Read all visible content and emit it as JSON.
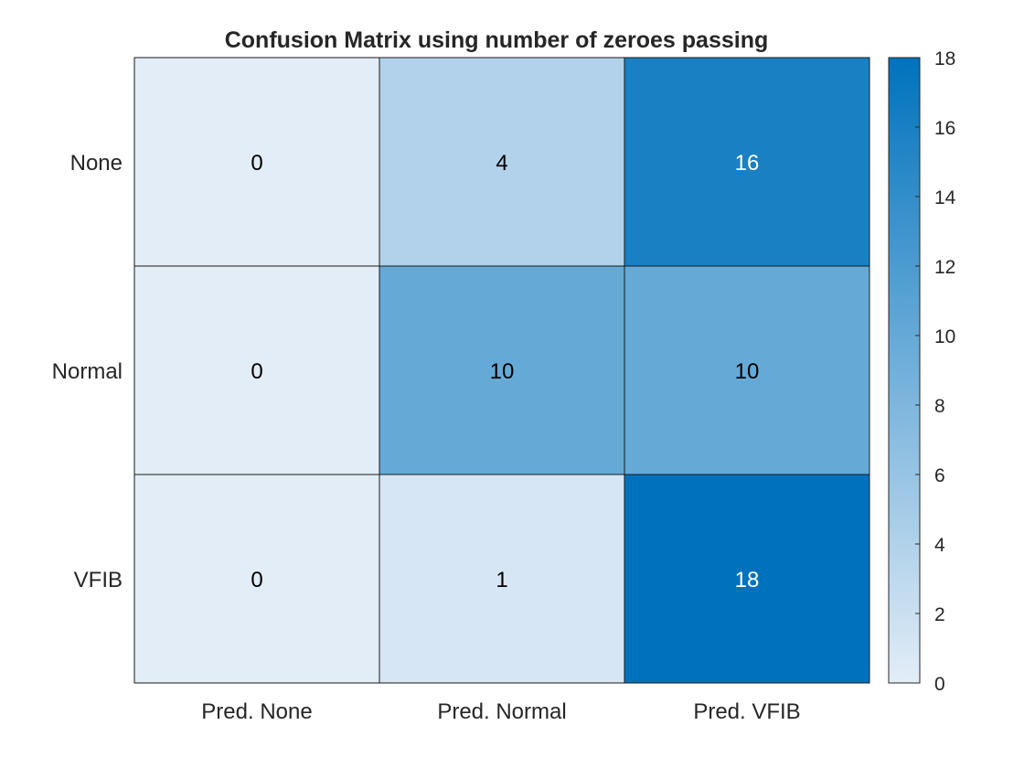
{
  "chart_data": {
    "type": "heatmap",
    "title": "Confusion Matrix using number of zeroes passing",
    "x_categories": [
      "Pred. None",
      "Pred. Normal",
      "Pred. VFIB"
    ],
    "y_categories": [
      "None",
      "Normal",
      "VFIB"
    ],
    "values": [
      [
        0,
        4,
        16
      ],
      [
        0,
        10,
        10
      ],
      [
        0,
        1,
        18
      ]
    ],
    "colorbar": {
      "range": [
        0,
        18
      ],
      "ticks": [
        0,
        2,
        4,
        6,
        8,
        10,
        12,
        14,
        16,
        18
      ],
      "low_color": "#e3edf7",
      "high_color": "#0072bd"
    },
    "text_color_dark": "#000000",
    "text_color_light": "#ffffff",
    "grid": false
  }
}
